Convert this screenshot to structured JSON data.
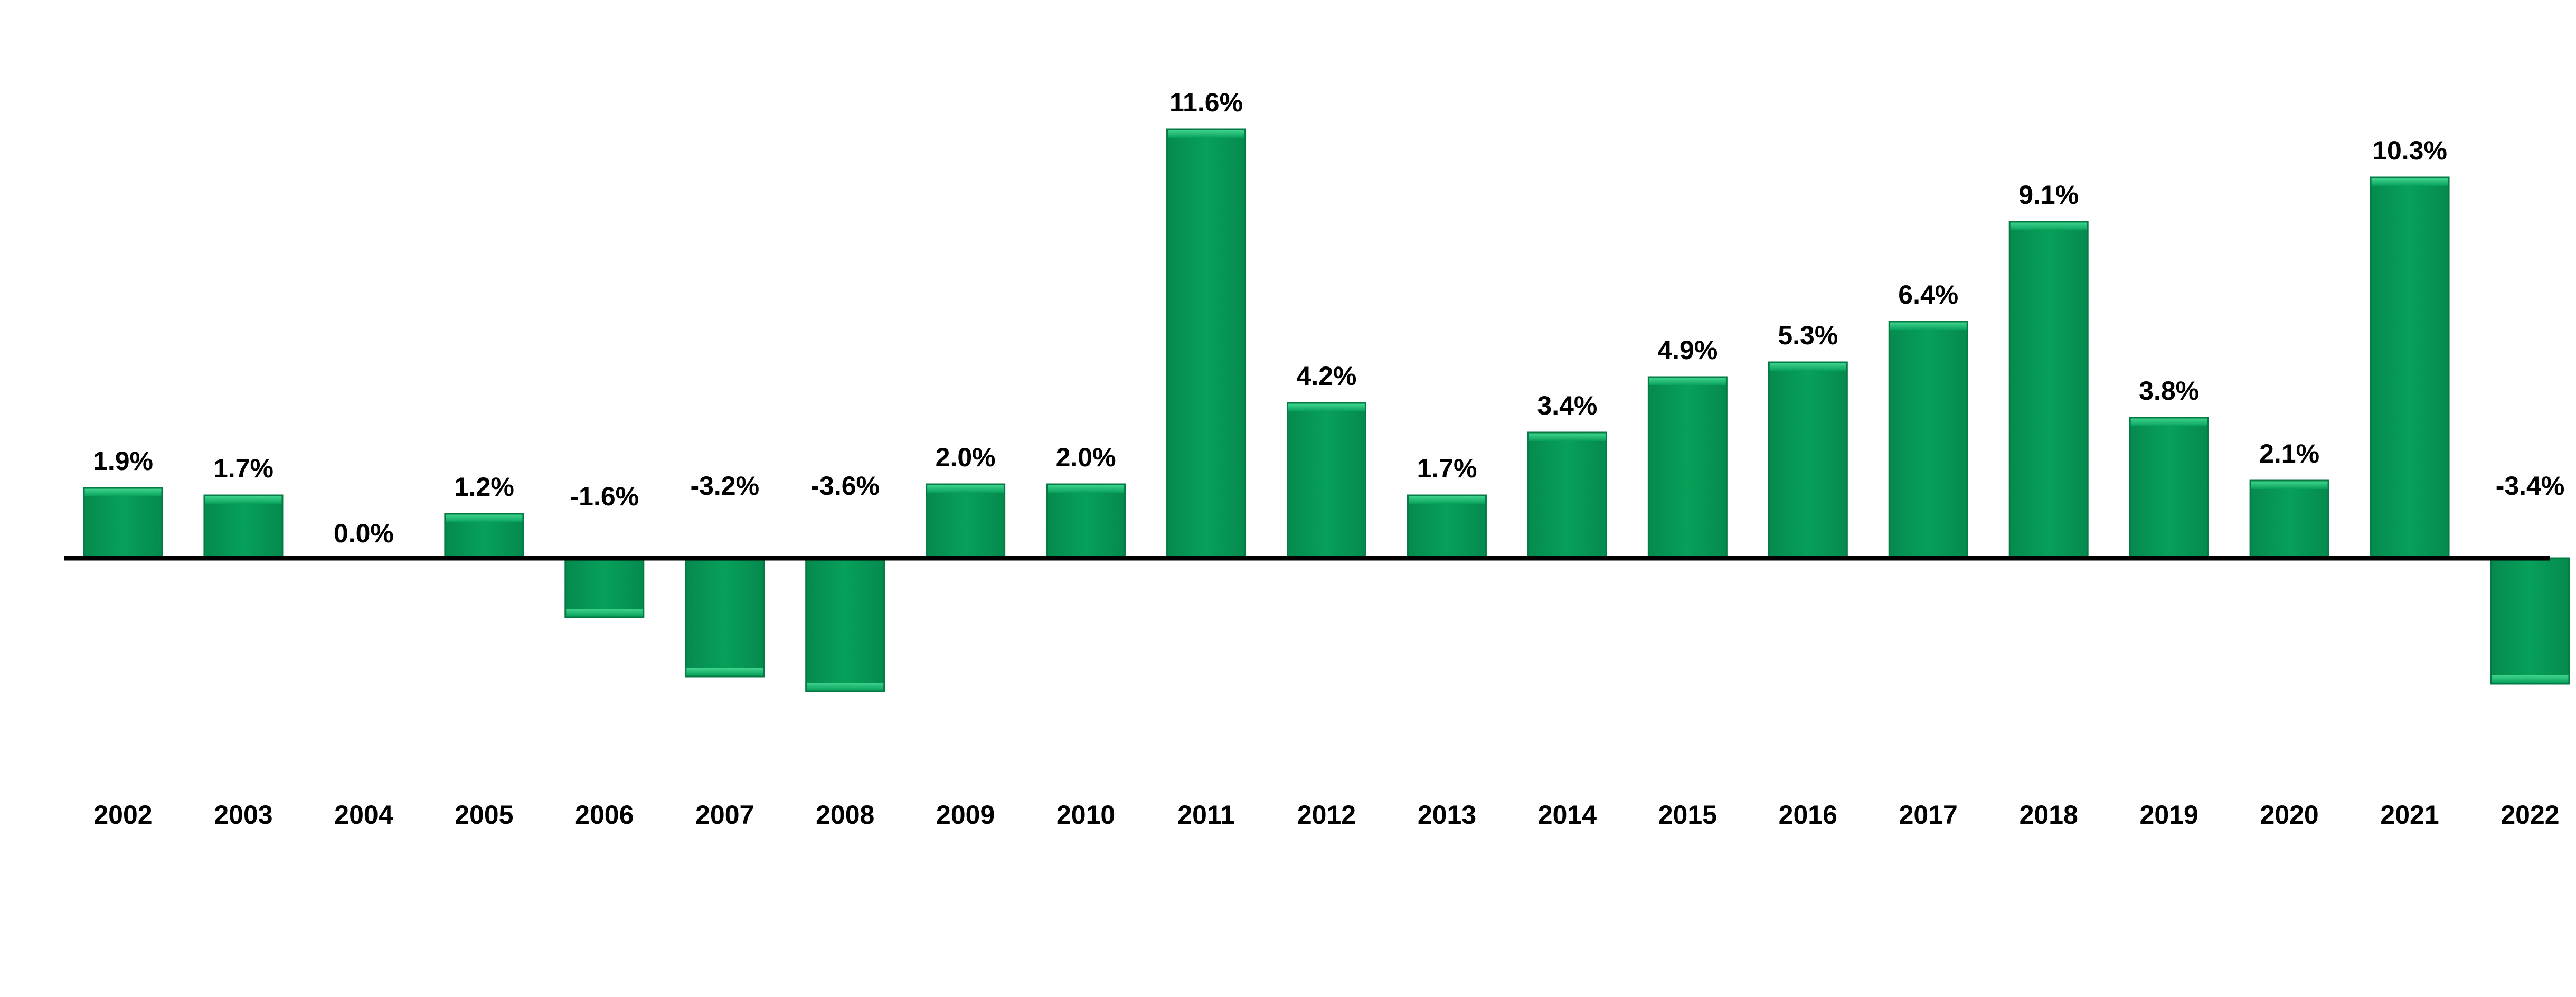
{
  "chart_data": {
    "type": "bar",
    "categories": [
      "2002",
      "2003",
      "2004",
      "2005",
      "2006",
      "2007",
      "2008",
      "2009",
      "2010",
      "2011",
      "2012",
      "2013",
      "2014",
      "2015",
      "2016",
      "2017",
      "2018",
      "2019",
      "2020",
      "2021",
      "2022"
    ],
    "values": [
      1.9,
      1.7,
      0.0,
      1.2,
      -1.6,
      -3.2,
      -3.6,
      2.0,
      2.0,
      11.6,
      4.2,
      1.7,
      3.4,
      4.9,
      5.3,
      6.4,
      9.1,
      3.8,
      2.1,
      10.3,
      -3.4
    ],
    "value_labels": [
      "1.9%",
      "1.7%",
      "0.0%",
      "1.2%",
      "-1.6%",
      "-3.2%",
      "-3.6%",
      "2.0%",
      "2.0%",
      "11.6%",
      "4.2%",
      "1.7%",
      "3.4%",
      "4.9%",
      "5.3%",
      "6.4%",
      "9.1%",
      "3.8%",
      "2.1%",
      "10.3%",
      "-3.4%"
    ],
    "title": "",
    "xlabel": "",
    "ylabel": "",
    "grid": false,
    "legend": "none",
    "bar_color": "#07a05b",
    "bar_edge_color": "#057a44",
    "axis_color": "#000000"
  }
}
